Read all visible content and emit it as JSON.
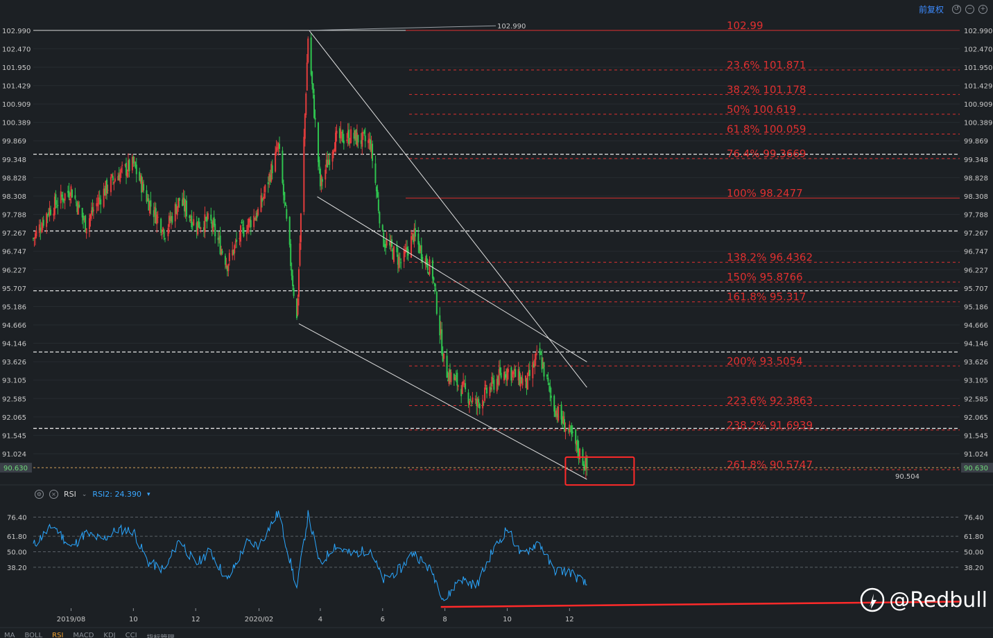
{
  "toolbar": {
    "restore_label": "前复权"
  },
  "rsi_panel": {
    "indicator_label": "RSI",
    "rsi2_label": "RSI2: 24.390"
  },
  "tabs": [
    "MA",
    "BOLL",
    "RSI",
    "MACD",
    "KDJ",
    "CCI",
    "指标管理"
  ],
  "active_tab": "RSI",
  "watermark": {
    "text": "@Redbull"
  },
  "colors": {
    "up": "#e23c3c",
    "down": "#2fc44f",
    "fib": "#e03030",
    "rsi": "#2aa7ff",
    "background": "#1c2024"
  },
  "chart_data": [
    {
      "type": "candlestick",
      "ylim": [
        90.3,
        103.3
      ],
      "x_range": [
        "2019-06-25",
        "2021-12-18"
      ],
      "y_ticks": [
        "102.990",
        "102.470",
        "101.950",
        "101.429",
        "100.909",
        "100.389",
        "99.869",
        "99.348",
        "98.828",
        "98.308",
        "97.788",
        "97.267",
        "96.747",
        "96.227",
        "95.707",
        "95.186",
        "94.666",
        "94.146",
        "93.626",
        "93.105",
        "92.585",
        "92.065",
        "91.545",
        "91.024"
      ],
      "x_ticks": [
        {
          "label": "2019/08",
          "date": "2019-08-01"
        },
        {
          "label": "10",
          "date": "2019-10-01"
        },
        {
          "label": "12",
          "date": "2019-12-01"
        },
        {
          "label": "2020/02",
          "date": "2020-02-01"
        },
        {
          "label": "4",
          "date": "2020-04-01"
        },
        {
          "label": "6",
          "date": "2020-06-01"
        },
        {
          "label": "8",
          "date": "2020-08-01"
        },
        {
          "label": "10",
          "date": "2020-10-01"
        },
        {
          "label": "12",
          "date": "2020-12-01"
        }
      ],
      "current_price": "90.630",
      "annotations": {
        "high": "102.990",
        "low": "90.504"
      },
      "fib_levels": [
        {
          "label": "102.99",
          "value": 102.99
        },
        {
          "label": "23.6% 101.871",
          "value": 101.871
        },
        {
          "label": "38.2% 101.178",
          "value": 101.178
        },
        {
          "label": "50% 100.619",
          "value": 100.619
        },
        {
          "label": "61.8% 100.059",
          "value": 100.059
        },
        {
          "label": "76.4% 99.3669",
          "value": 99.3669
        },
        {
          "label": "100% 98.2477",
          "value": 98.2477
        },
        {
          "label": "138.2% 96.4362",
          "value": 96.4362
        },
        {
          "label": "150% 95.8766",
          "value": 95.8766
        },
        {
          "label": "161.8% 95.317",
          "value": 95.317
        },
        {
          "label": "200% 93.5054",
          "value": 93.5054
        },
        {
          "label": "223.6% 92.3863",
          "value": 92.3863
        },
        {
          "label": "238.2% 91.6939",
          "value": 91.6939
        },
        {
          "label": "261.8% 90.5747",
          "value": 90.5747
        }
      ],
      "horizontal_dashed_levels": [
        99.49,
        97.32,
        95.63,
        93.9,
        91.74
      ],
      "key_points": [
        {
          "date": "2019-06-25",
          "close": 97.1
        },
        {
          "date": "2019-07-10",
          "close": 97.9
        },
        {
          "date": "2019-08-01",
          "close": 98.5
        },
        {
          "date": "2019-08-15",
          "close": 97.5
        },
        {
          "date": "2019-09-01",
          "close": 98.4
        },
        {
          "date": "2019-09-15",
          "close": 98.9
        },
        {
          "date": "2019-10-01",
          "close": 99.2
        },
        {
          "date": "2019-10-15",
          "close": 98.2
        },
        {
          "date": "2019-11-01",
          "close": 97.3
        },
        {
          "date": "2019-11-15",
          "close": 98.2
        },
        {
          "date": "2019-12-01",
          "close": 97.5
        },
        {
          "date": "2019-12-15",
          "close": 97.6
        },
        {
          "date": "2020-01-01",
          "close": 96.4
        },
        {
          "date": "2020-01-15",
          "close": 97.3
        },
        {
          "date": "2020-02-01",
          "close": 97.9
        },
        {
          "date": "2020-02-20",
          "close": 99.7
        },
        {
          "date": "2020-03-09",
          "close": 94.8
        },
        {
          "date": "2020-03-20",
          "close": 102.8
        },
        {
          "date": "2020-04-01",
          "close": 98.6
        },
        {
          "date": "2020-04-15",
          "close": 99.9
        },
        {
          "date": "2020-05-01",
          "close": 100.0
        },
        {
          "date": "2020-05-20",
          "close": 99.8
        },
        {
          "date": "2020-06-01",
          "close": 97.1
        },
        {
          "date": "2020-06-20",
          "close": 96.4
        },
        {
          "date": "2020-07-01",
          "close": 97.2
        },
        {
          "date": "2020-07-20",
          "close": 96.1
        },
        {
          "date": "2020-08-01",
          "close": 93.4
        },
        {
          "date": "2020-08-20",
          "close": 92.8
        },
        {
          "date": "2020-09-01",
          "close": 92.4
        },
        {
          "date": "2020-09-20",
          "close": 93.1
        },
        {
          "date": "2020-10-01",
          "close": 93.4
        },
        {
          "date": "2020-10-20",
          "close": 93.0
        },
        {
          "date": "2020-11-01",
          "close": 93.9
        },
        {
          "date": "2020-11-15",
          "close": 92.4
        },
        {
          "date": "2020-12-01",
          "close": 91.6
        },
        {
          "date": "2020-12-18",
          "close": 90.63
        }
      ]
    },
    {
      "type": "line",
      "name": "RSI2",
      "ylim": [
        7,
        83
      ],
      "y_ticks": [
        "76.40",
        "61.80",
        "50.00",
        "38.20"
      ],
      "key_points": [
        {
          "date": "2019-06-25",
          "value": 55
        },
        {
          "date": "2019-07-05",
          "value": 63
        },
        {
          "date": "2019-07-15",
          "value": 70
        },
        {
          "date": "2019-08-01",
          "value": 53
        },
        {
          "date": "2019-08-15",
          "value": 64
        },
        {
          "date": "2019-09-01",
          "value": 59
        },
        {
          "date": "2019-09-15",
          "value": 67
        },
        {
          "date": "2019-10-01",
          "value": 66
        },
        {
          "date": "2019-10-15",
          "value": 42
        },
        {
          "date": "2019-11-01",
          "value": 36
        },
        {
          "date": "2019-11-15",
          "value": 60
        },
        {
          "date": "2019-12-01",
          "value": 40
        },
        {
          "date": "2019-12-15",
          "value": 51
        },
        {
          "date": "2020-01-01",
          "value": 28
        },
        {
          "date": "2020-01-20",
          "value": 57
        },
        {
          "date": "2020-02-01",
          "value": 55
        },
        {
          "date": "2020-02-20",
          "value": 80
        },
        {
          "date": "2020-03-09",
          "value": 22
        },
        {
          "date": "2020-03-20",
          "value": 78
        },
        {
          "date": "2020-04-01",
          "value": 40
        },
        {
          "date": "2020-04-15",
          "value": 55
        },
        {
          "date": "2020-05-01",
          "value": 48
        },
        {
          "date": "2020-05-20",
          "value": 52
        },
        {
          "date": "2020-06-01",
          "value": 28
        },
        {
          "date": "2020-06-20",
          "value": 38
        },
        {
          "date": "2020-07-01",
          "value": 50
        },
        {
          "date": "2020-07-20",
          "value": 34
        },
        {
          "date": "2020-08-01",
          "value": 12
        },
        {
          "date": "2020-08-15",
          "value": 30
        },
        {
          "date": "2020-09-01",
          "value": 24
        },
        {
          "date": "2020-09-15",
          "value": 48
        },
        {
          "date": "2020-10-01",
          "value": 68
        },
        {
          "date": "2020-10-15",
          "value": 47
        },
        {
          "date": "2020-11-01",
          "value": 58
        },
        {
          "date": "2020-11-15",
          "value": 36
        },
        {
          "date": "2020-12-01",
          "value": 35
        },
        {
          "date": "2020-12-18",
          "value": 24.39
        }
      ]
    }
  ]
}
